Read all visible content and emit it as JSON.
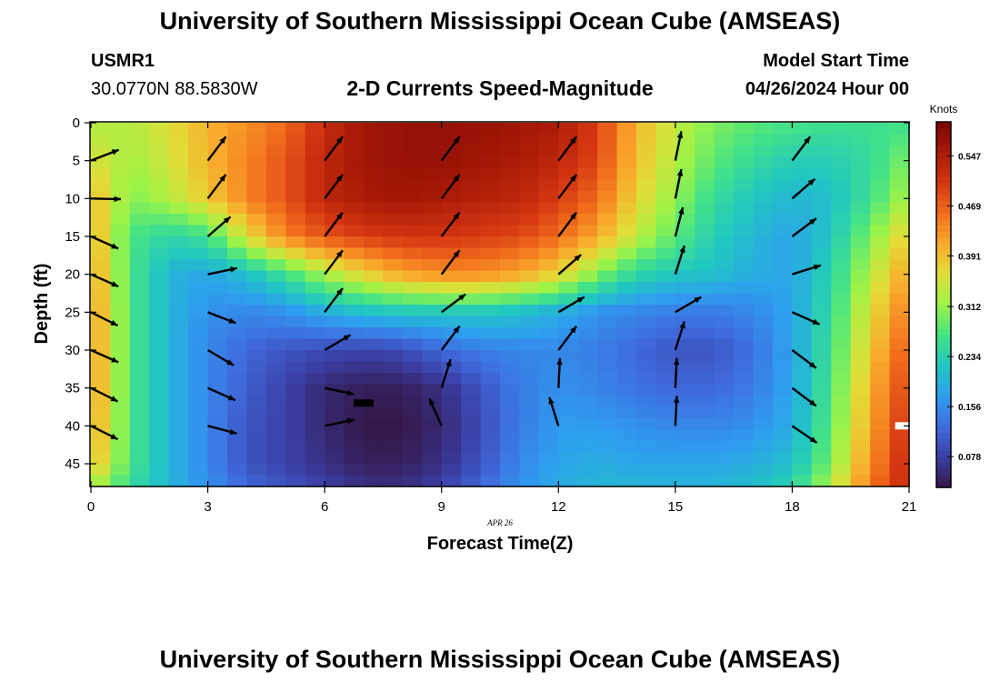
{
  "header": {
    "title": "University of Southern Mississippi Ocean Cube (AMSEAS)",
    "station_id": "USMR1",
    "station_coords": "30.0770N  88.5830W",
    "chart_name": "2-D Currents Speed-Magnitude",
    "model_start_label": "Model Start Time",
    "model_start_value": "04/26/2024 Hour 00"
  },
  "footer": {
    "title": "University of Southern Mississippi Ocean Cube (AMSEAS)"
  },
  "colors": {
    "colormap": [
      "#341748",
      "#3b3fa6",
      "#3f6ddf",
      "#2e9ef0",
      "#21c7c1",
      "#45e385",
      "#9cf347",
      "#e2dd37",
      "#f9a92c",
      "#f16e1c",
      "#d53612",
      "#a81a07",
      "#7a0403"
    ]
  },
  "chart_data": {
    "type": "heatmap",
    "title": "2-D Currents Speed-Magnitude",
    "xlabel": "Forecast Time(Z)",
    "ylabel": "Depth (ft)",
    "date_label": "APR 26",
    "xlim": [
      0,
      21
    ],
    "ylim": [
      0,
      48
    ],
    "x_ticks": [
      0,
      3,
      6,
      9,
      12,
      15,
      18,
      21
    ],
    "y_ticks": [
      0,
      5,
      10,
      15,
      20,
      25,
      30,
      35,
      40,
      45
    ],
    "colorbar": {
      "label": "Knots",
      "range": [
        0.03,
        0.6
      ],
      "ticks": [
        0.547,
        0.469,
        0.391,
        0.312,
        0.234,
        0.156,
        0.078
      ]
    },
    "speed_depths": [
      0,
      5,
      10,
      15,
      20,
      25,
      30,
      35,
      40,
      45,
      48
    ],
    "speed_times": [
      0,
      1,
      2,
      3,
      4,
      5,
      6,
      7,
      8,
      9,
      10,
      11,
      12,
      13,
      14,
      15,
      16,
      17,
      18,
      19,
      20,
      21
    ],
    "speed": [
      [
        0.33,
        0.33,
        0.36,
        0.4,
        0.43,
        0.46,
        0.52,
        0.56,
        0.57,
        0.57,
        0.57,
        0.56,
        0.55,
        0.5,
        0.4,
        0.34,
        0.3,
        0.28,
        0.27,
        0.26,
        0.26,
        0.26
      ],
      [
        0.36,
        0.32,
        0.35,
        0.4,
        0.44,
        0.48,
        0.53,
        0.56,
        0.57,
        0.57,
        0.56,
        0.55,
        0.53,
        0.49,
        0.39,
        0.33,
        0.28,
        0.25,
        0.23,
        0.23,
        0.25,
        0.3
      ],
      [
        0.4,
        0.3,
        0.33,
        0.38,
        0.44,
        0.48,
        0.53,
        0.55,
        0.56,
        0.55,
        0.54,
        0.53,
        0.5,
        0.46,
        0.37,
        0.31,
        0.25,
        0.22,
        0.2,
        0.21,
        0.26,
        0.33
      ],
      [
        0.41,
        0.27,
        0.24,
        0.26,
        0.36,
        0.44,
        0.48,
        0.5,
        0.51,
        0.51,
        0.5,
        0.49,
        0.46,
        0.41,
        0.34,
        0.28,
        0.23,
        0.2,
        0.18,
        0.22,
        0.3,
        0.38
      ],
      [
        0.42,
        0.27,
        0.2,
        0.18,
        0.21,
        0.26,
        0.32,
        0.37,
        0.41,
        0.43,
        0.43,
        0.41,
        0.37,
        0.3,
        0.24,
        0.22,
        0.21,
        0.19,
        0.18,
        0.24,
        0.33,
        0.42
      ],
      [
        0.43,
        0.27,
        0.2,
        0.16,
        0.15,
        0.16,
        0.19,
        0.21,
        0.22,
        0.22,
        0.22,
        0.21,
        0.19,
        0.16,
        0.15,
        0.14,
        0.14,
        0.15,
        0.18,
        0.25,
        0.36,
        0.45
      ],
      [
        0.43,
        0.27,
        0.2,
        0.15,
        0.12,
        0.1,
        0.09,
        0.08,
        0.09,
        0.12,
        0.14,
        0.15,
        0.15,
        0.14,
        0.12,
        0.1,
        0.1,
        0.13,
        0.18,
        0.26,
        0.38,
        0.48
      ],
      [
        0.43,
        0.27,
        0.2,
        0.15,
        0.11,
        0.08,
        0.05,
        0.04,
        0.04,
        0.06,
        0.1,
        0.14,
        0.16,
        0.15,
        0.13,
        0.12,
        0.12,
        0.14,
        0.18,
        0.27,
        0.4,
        0.5
      ],
      [
        0.42,
        0.27,
        0.2,
        0.15,
        0.1,
        0.08,
        0.05,
        0.03,
        0.03,
        0.05,
        0.09,
        0.14,
        0.17,
        0.17,
        0.16,
        0.15,
        0.15,
        0.16,
        0.19,
        0.28,
        0.41,
        0.52
      ],
      [
        0.4,
        0.27,
        0.2,
        0.15,
        0.1,
        0.08,
        0.06,
        0.04,
        0.04,
        0.06,
        0.1,
        0.15,
        0.18,
        0.19,
        0.18,
        0.18,
        0.18,
        0.19,
        0.21,
        0.3,
        0.43,
        0.53
      ],
      [
        0.33,
        0.25,
        0.2,
        0.16,
        0.12,
        0.1,
        0.08,
        0.06,
        0.06,
        0.08,
        0.12,
        0.16,
        0.19,
        0.2,
        0.2,
        0.2,
        0.2,
        0.21,
        0.24,
        0.33,
        0.45,
        0.53
      ]
    ],
    "arrow_times": [
      0,
      3,
      6,
      9,
      12,
      15,
      18
    ],
    "arrow_depths": [
      5,
      10,
      15,
      20,
      25,
      30,
      35,
      40
    ],
    "arrow_vectors": [
      [
        [
          0.9,
          0.35
        ],
        [
          1.0,
          -0.02
        ],
        [
          0.9,
          -0.4
        ],
        [
          0.9,
          -0.4
        ],
        [
          0.9,
          -0.45
        ],
        [
          0.9,
          -0.4
        ],
        [
          0.9,
          -0.45
        ],
        [
          0.9,
          -0.45
        ]
      ],
      [
        [
          0.6,
          0.8
        ],
        [
          0.6,
          0.8
        ],
        [
          0.75,
          0.65
        ],
        [
          0.95,
          0.2
        ],
        [
          0.9,
          -0.35
        ],
        [
          0.85,
          -0.5
        ],
        [
          0.9,
          -0.4
        ],
        [
          0.95,
          -0.25
        ]
      ],
      [
        [
          0.6,
          0.8
        ],
        [
          0.6,
          0.8
        ],
        [
          0.6,
          0.8
        ],
        [
          0.6,
          0.8
        ],
        [
          0.6,
          0.8
        ],
        [
          0.85,
          0.5
        ],
        [
          0.95,
          -0.2
        ],
        [
          0.95,
          0.2
        ]
      ],
      [
        [
          0.6,
          0.8
        ],
        [
          0.6,
          0.8
        ],
        [
          0.6,
          0.8
        ],
        [
          0.6,
          0.8
        ],
        [
          0.8,
          0.6
        ],
        [
          0.6,
          0.8
        ],
        [
          0.3,
          0.95
        ],
        [
          -0.4,
          0.9
        ]
      ],
      [
        [
          0.6,
          0.8
        ],
        [
          0.6,
          0.8
        ],
        [
          0.6,
          0.8
        ],
        [
          0.75,
          0.65
        ],
        [
          0.85,
          0.5
        ],
        [
          0.6,
          0.8
        ],
        [
          0.05,
          1.0
        ],
        [
          -0.3,
          0.95
        ]
      ],
      [
        [
          0.2,
          0.98
        ],
        [
          0.2,
          0.98
        ],
        [
          0.25,
          0.97
        ],
        [
          0.3,
          0.95
        ],
        [
          0.85,
          0.5
        ],
        [
          0.3,
          0.95
        ],
        [
          0.05,
          1.0
        ],
        [
          0.05,
          1.0
        ]
      ],
      [
        [
          0.6,
          0.8
        ],
        [
          0.75,
          0.65
        ],
        [
          0.8,
          0.6
        ],
        [
          0.95,
          0.3
        ],
        [
          0.9,
          -0.4
        ],
        [
          0.8,
          -0.6
        ],
        [
          0.8,
          -0.6
        ],
        [
          0.8,
          -0.55
        ]
      ]
    ],
    "markers": [
      {
        "x": 7.0,
        "depth": 37.0,
        "color": "#000000"
      },
      {
        "x": 20.9,
        "depth": 40.0,
        "color": "#ffffff"
      }
    ]
  }
}
